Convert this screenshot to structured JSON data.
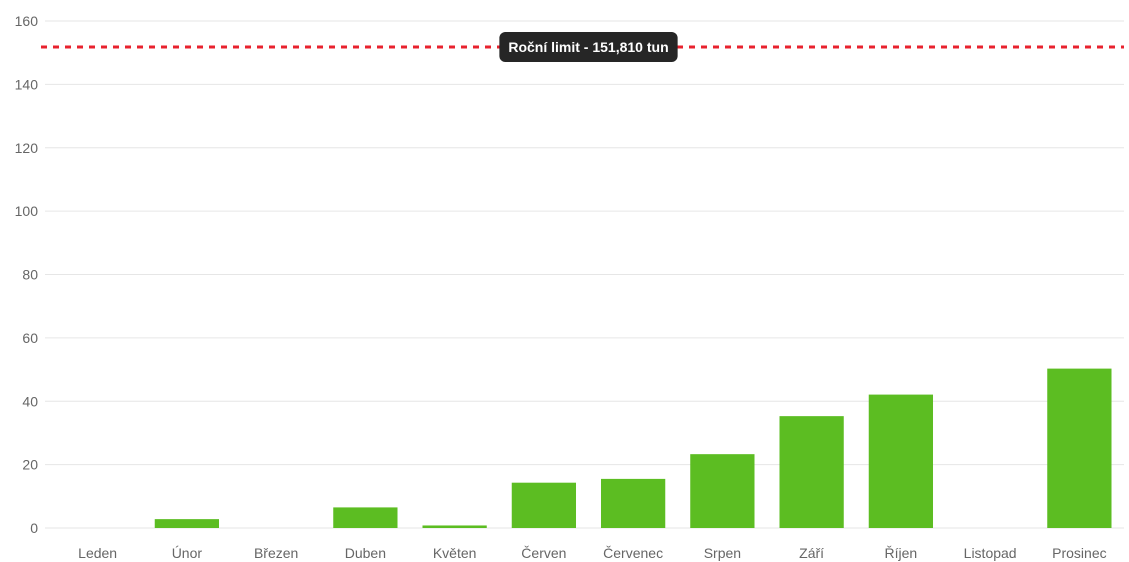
{
  "chart_data": {
    "type": "bar",
    "categories": [
      "Leden",
      "Únor",
      "Březen",
      "Duben",
      "Květen",
      "Červen",
      "Červenec",
      "Srpen",
      "Září",
      "Říjen",
      "Listopad",
      "Prosinec"
    ],
    "series": [
      {
        "values": [
          0,
          2.8,
          0,
          6.5,
          0.8,
          14.3,
          15.5,
          23.3,
          35.3,
          42.1,
          0,
          50.3
        ]
      }
    ],
    "ylim": [
      0,
      160
    ],
    "yticks": [
      0,
      20,
      40,
      60,
      80,
      100,
      120,
      140,
      160
    ],
    "grid": true,
    "limit_line": {
      "value": 151.81,
      "label": "Roční limit - 151,810 tun"
    },
    "colors": {
      "bar": "#5cbd22",
      "limit": "#e8222e",
      "label_bg": "#262626",
      "grid": "#e6e6e6",
      "tick_text": "#666666"
    }
  }
}
